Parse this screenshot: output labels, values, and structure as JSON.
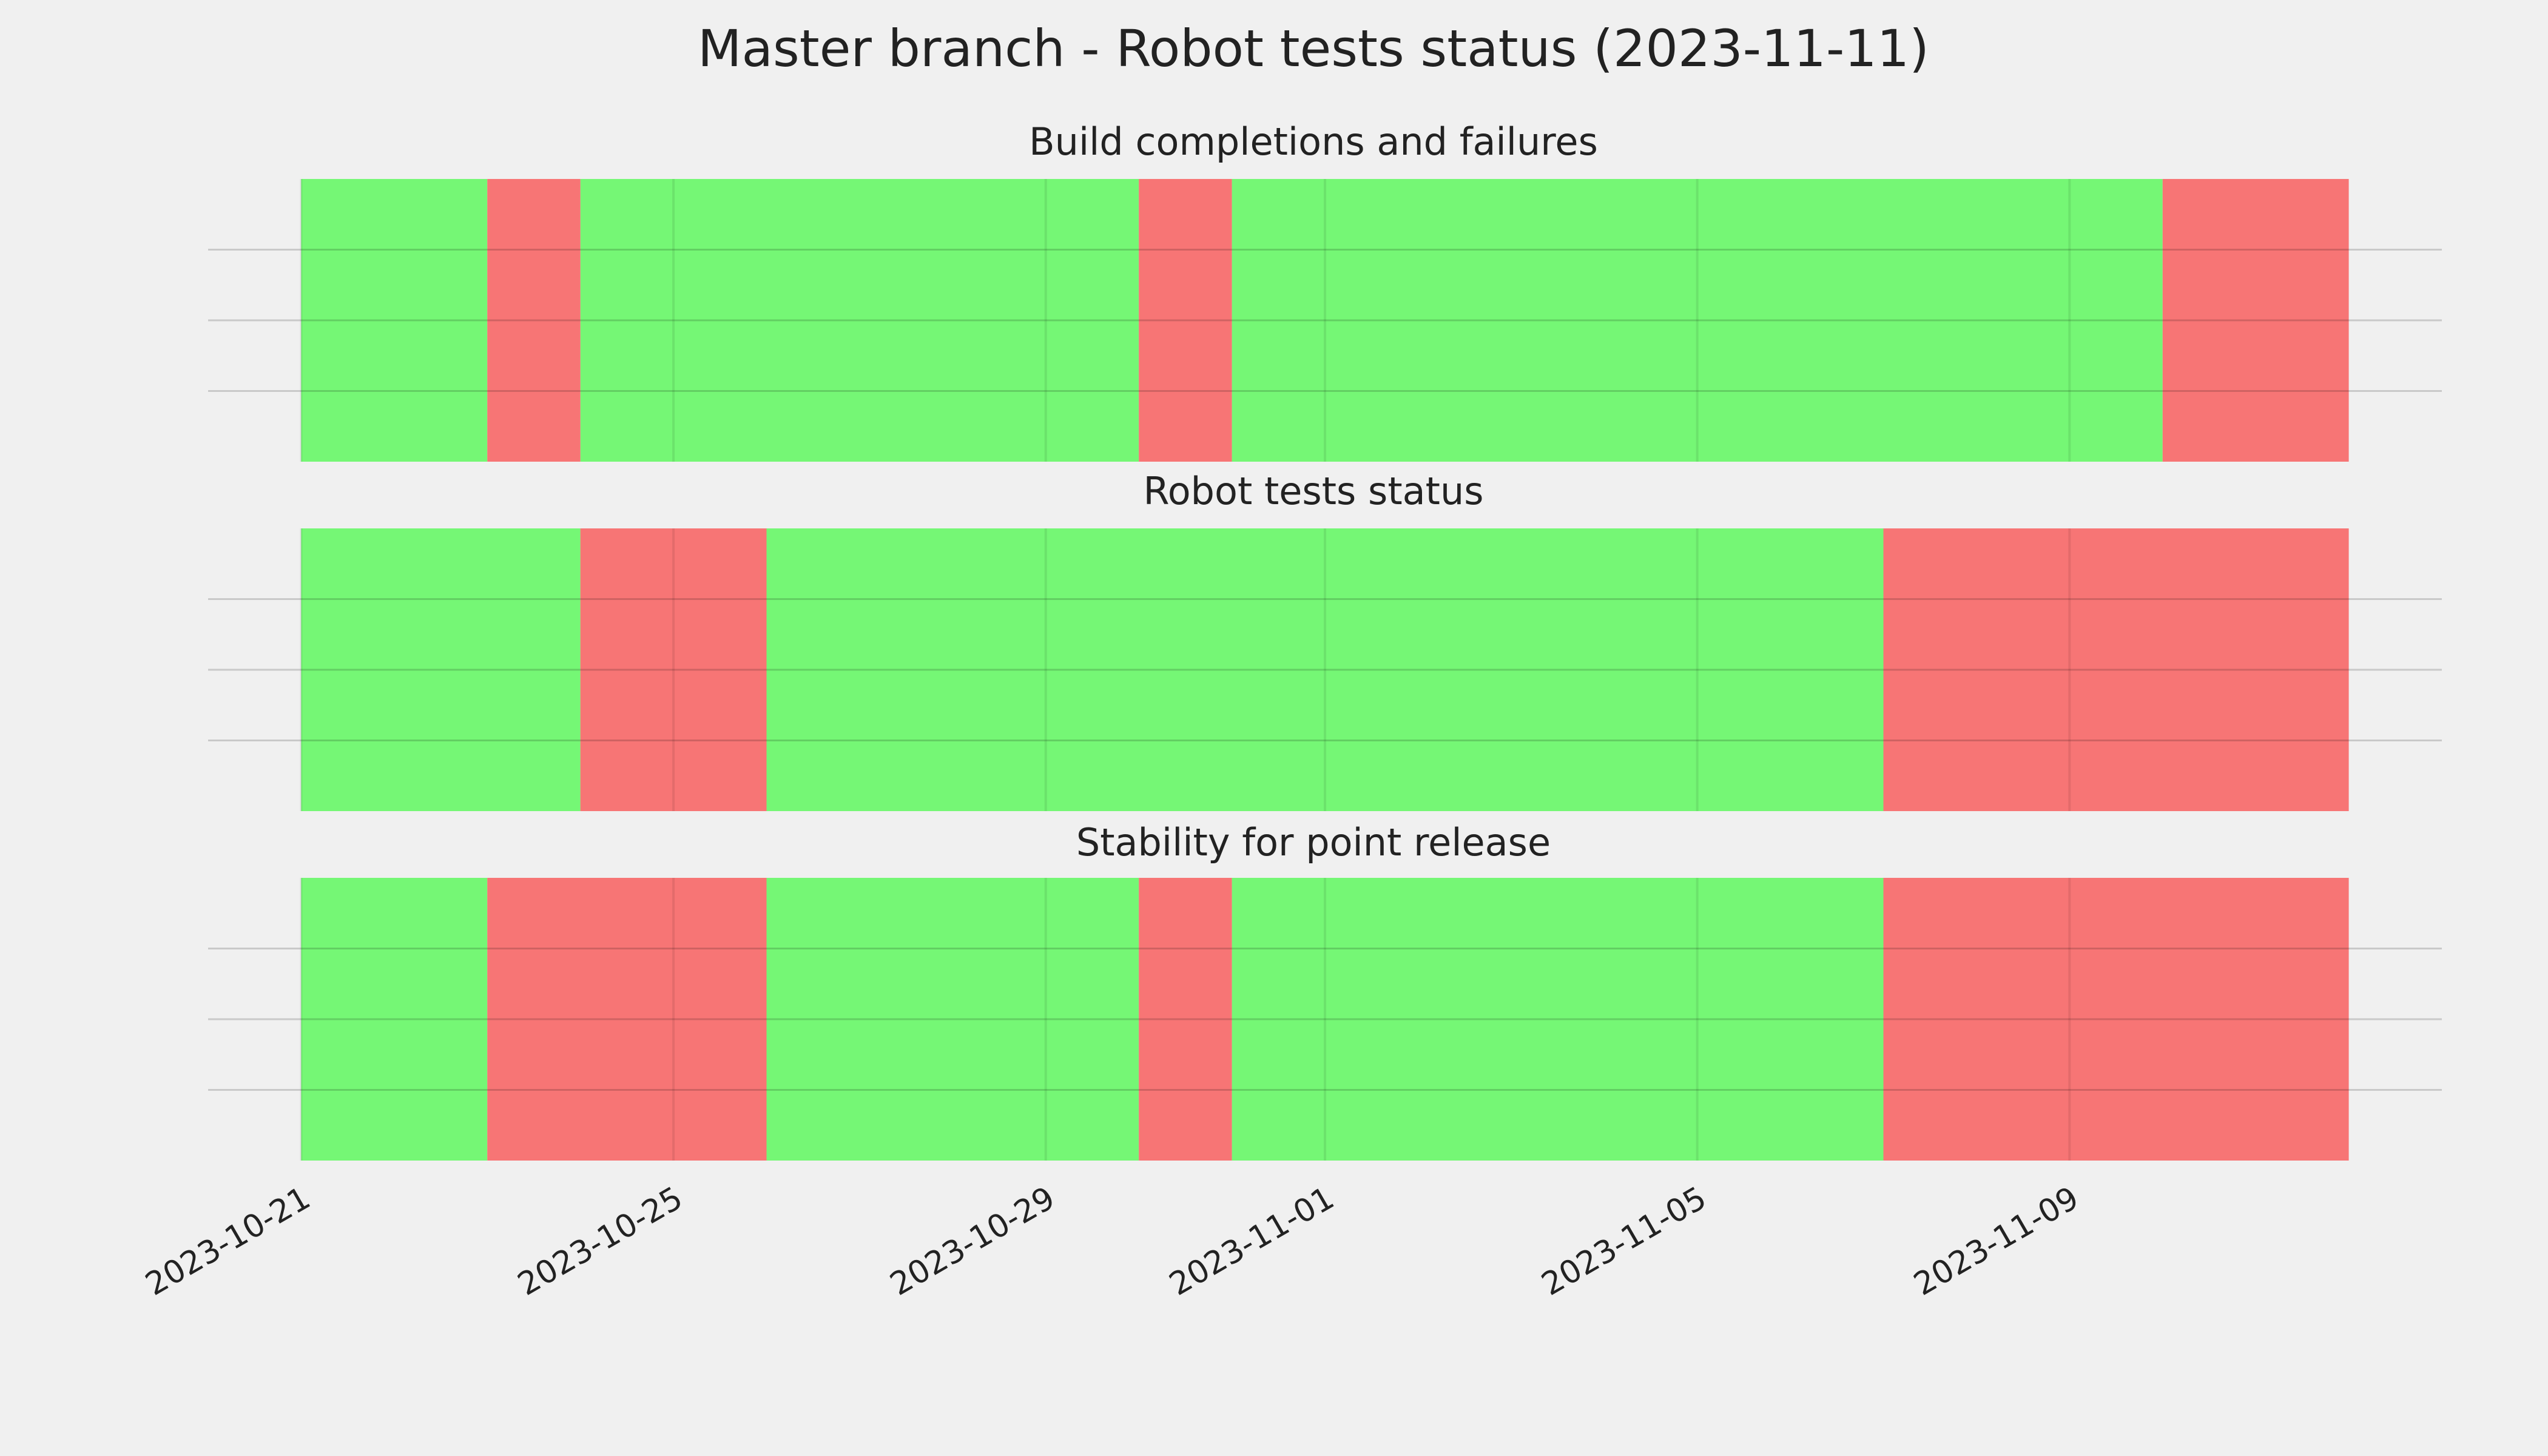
{
  "title": "Master branch - Robot tests status (2023-11-11)",
  "chart_data": [
    {
      "type": "timeline",
      "title": "Build completions and failures",
      "xlim": [
        "2023-10-20",
        "2023-11-13"
      ],
      "xticks": [
        "2023-10-21",
        "2023-10-25",
        "2023-10-29",
        "2023-11-01",
        "2023-11-05",
        "2023-11-09"
      ],
      "ylim": [
        0,
        1
      ],
      "yticks": [
        0.25,
        0.5,
        0.75
      ],
      "grid": true,
      "series": [
        {
          "color": "#75f775",
          "spans": [
            [
              "2023-10-21",
              "2023-10-23"
            ],
            [
              "2023-10-24",
              "2023-10-30"
            ],
            [
              "2023-10-31",
              "2023-11-10"
            ]
          ]
        },
        {
          "color": "#f77575",
          "spans": [
            [
              "2023-10-23",
              "2023-10-24"
            ],
            [
              "2023-10-30",
              "2023-10-31"
            ],
            [
              "2023-11-10",
              "2023-11-12"
            ]
          ]
        }
      ]
    },
    {
      "type": "timeline",
      "title": "Robot tests status",
      "xlim": [
        "2023-10-20",
        "2023-11-13"
      ],
      "xticks": [
        "2023-10-21",
        "2023-10-25",
        "2023-10-29",
        "2023-11-01",
        "2023-11-05",
        "2023-11-09"
      ],
      "ylim": [
        0,
        1
      ],
      "yticks": [
        0.25,
        0.5,
        0.75
      ],
      "grid": true,
      "series": [
        {
          "color": "#75f775",
          "spans": [
            [
              "2023-10-21",
              "2023-10-24"
            ],
            [
              "2023-10-26",
              "2023-11-07"
            ]
          ]
        },
        {
          "color": "#f77575",
          "spans": [
            [
              "2023-10-24",
              "2023-10-26"
            ],
            [
              "2023-11-07",
              "2023-11-12"
            ]
          ]
        }
      ]
    },
    {
      "type": "timeline",
      "title": "Stability for point release",
      "xlim": [
        "2023-10-20",
        "2023-11-13"
      ],
      "xticks": [
        "2023-10-21",
        "2023-10-25",
        "2023-10-29",
        "2023-11-01",
        "2023-11-05",
        "2023-11-09"
      ],
      "ylim": [
        0,
        1
      ],
      "yticks": [
        0.25,
        0.5,
        0.75
      ],
      "grid": true,
      "series": [
        {
          "color": "#75f775",
          "spans": [
            [
              "2023-10-21",
              "2023-10-23"
            ],
            [
              "2023-10-26",
              "2023-10-30"
            ],
            [
              "2023-10-31",
              "2023-11-07"
            ]
          ]
        },
        {
          "color": "#f77575",
          "spans": [
            [
              "2023-10-23",
              "2023-10-26"
            ],
            [
              "2023-10-30",
              "2023-10-31"
            ],
            [
              "2023-11-07",
              "2023-11-12"
            ]
          ]
        }
      ]
    }
  ]
}
